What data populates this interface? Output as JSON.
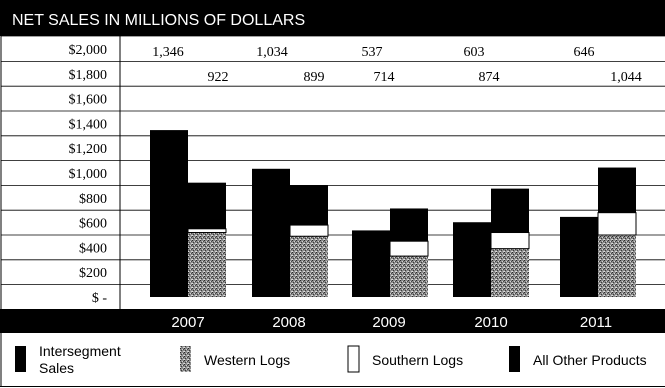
{
  "chart_data": {
    "type": "bar",
    "title": "NET SALES IN MILLIONS OF DOLLARS",
    "categories": [
      "2007",
      "2008",
      "2009",
      "2010",
      "2011"
    ],
    "y_tick_labels": [
      "$2,000",
      "$1,800",
      "$1,600",
      "$1,400",
      "$1,200",
      "$1,000",
      "$800",
      "$600",
      "$400",
      "$200",
      "$ -"
    ],
    "y_tick_values": [
      2000,
      1800,
      1600,
      1400,
      1200,
      1000,
      800,
      600,
      400,
      200,
      0
    ],
    "ylim": [
      0,
      2000
    ],
    "grid": true,
    "legend_position": "bottom",
    "series": [
      {
        "name": "Intersegment Sales",
        "values": [
          1346,
          1034,
          537,
          603,
          646
        ],
        "color": "#000000",
        "fill": "solid"
      },
      {
        "name": "Western Logs",
        "values": [
          520,
          490,
          330,
          390,
          500
        ],
        "color": "#6e6e6e",
        "fill": "stipple"
      },
      {
        "name": "Southern Logs",
        "values": [
          30,
          90,
          120,
          130,
          180
        ],
        "color": "#ffffff",
        "fill": "hollow"
      },
      {
        "name": "All Other Products",
        "values": [
          372,
          319,
          264,
          354,
          364
        ],
        "color": "#000000",
        "fill": "solid"
      }
    ],
    "stack_groups": [
      [
        "Intersegment Sales"
      ],
      [
        "Western Logs",
        "Southern Logs",
        "All Other Products"
      ]
    ],
    "top_row_labels": [
      "1,346",
      "1,034",
      "537",
      "603",
      "646"
    ],
    "second_row_labels": [
      "922",
      "899",
      "714",
      "874",
      "1,044"
    ]
  }
}
